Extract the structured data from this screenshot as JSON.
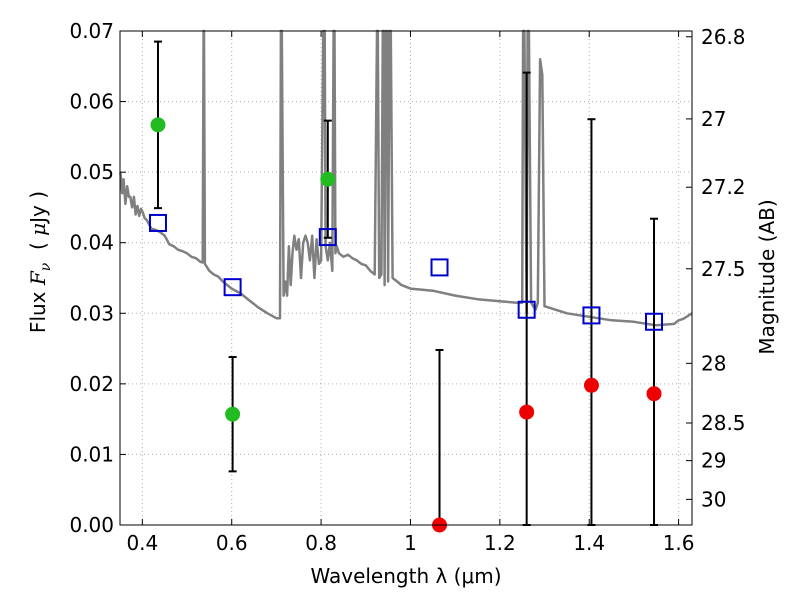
{
  "chart_data": {
    "type": "scatter",
    "xlabel": "Wavelength  λ (μm)",
    "ylabel": "Flux  F_ν  ( μJy )",
    "ylabel_parts": {
      "prefix": "Flux ",
      "symbol": "F",
      "subscript": "ν",
      "open": "  ( ",
      "unit_mu": "μ",
      "unit": "Jy )"
    },
    "y2label": "Magnitude (AB)",
    "xlim": [
      0.35,
      1.63
    ],
    "ylim": [
      0.0,
      0.07
    ],
    "grid": true,
    "xticks": [
      {
        "value": 0.4,
        "label": "0.4"
      },
      {
        "value": 0.6,
        "label": "0.6"
      },
      {
        "value": 0.8,
        "label": "0.8"
      },
      {
        "value": 1.0,
        "label": "1"
      },
      {
        "value": 1.2,
        "label": "1.2"
      },
      {
        "value": 1.4,
        "label": "1.4"
      },
      {
        "value": 1.6,
        "label": "1.6"
      }
    ],
    "yticks": [
      {
        "value": 0.0,
        "label": "0.00"
      },
      {
        "value": 0.01,
        "label": "0.01"
      },
      {
        "value": 0.02,
        "label": "0.02"
      },
      {
        "value": 0.03,
        "label": "0.03"
      },
      {
        "value": 0.04,
        "label": "0.04"
      },
      {
        "value": 0.05,
        "label": "0.05"
      },
      {
        "value": 0.06,
        "label": "0.06"
      },
      {
        "value": 0.07,
        "label": "0.07"
      }
    ],
    "y2ticks": [
      {
        "mag": 26.8,
        "label": "26.8"
      },
      {
        "mag": 27.0,
        "label": "27"
      },
      {
        "mag": 27.2,
        "label": "27.2"
      },
      {
        "mag": 27.5,
        "label": "27.5"
      },
      {
        "mag": 28.0,
        "label": "28"
      },
      {
        "mag": 28.5,
        "label": "28.5"
      },
      {
        "mag": 29.0,
        "label": "29"
      },
      {
        "mag": 30.0,
        "label": "30"
      }
    ],
    "colors": {
      "model": "#808080",
      "model_fluxes": "#0000cc",
      "detections": "#22bb22",
      "non_detections": "#ee0000",
      "errorbars": "#000000",
      "grid": "#b0b0b0"
    },
    "series": [
      {
        "kind": "model_sed_line",
        "x": [
          0.351,
          0.355,
          0.358,
          0.362,
          0.366,
          0.37,
          0.373,
          0.377,
          0.381,
          0.385,
          0.389,
          0.393,
          0.397,
          0.401,
          0.405,
          0.41,
          0.42,
          0.43,
          0.44,
          0.45,
          0.46,
          0.47,
          0.48,
          0.49,
          0.5,
          0.51,
          0.52,
          0.53,
          0.535,
          0.537,
          0.538,
          0.54,
          0.55,
          0.56,
          0.57,
          0.58,
          0.6,
          0.62,
          0.64,
          0.66,
          0.68,
          0.7,
          0.708,
          0.71,
          0.712,
          0.716,
          0.72,
          0.724,
          0.728,
          0.732,
          0.736,
          0.74,
          0.745,
          0.75,
          0.755,
          0.76,
          0.765,
          0.77,
          0.775,
          0.78,
          0.785,
          0.79,
          0.795,
          0.8,
          0.805,
          0.808,
          0.81,
          0.815,
          0.82,
          0.825,
          0.828,
          0.83,
          0.832,
          0.835,
          0.84,
          0.85,
          0.86,
          0.87,
          0.88,
          0.89,
          0.9,
          0.91,
          0.92,
          0.925,
          0.927,
          0.93,
          0.935,
          0.938,
          0.94,
          0.942,
          0.945,
          0.948,
          0.95,
          0.953,
          0.956,
          0.96,
          0.97,
          0.98,
          1.0,
          1.05,
          1.1,
          1.15,
          1.2,
          1.24,
          1.25,
          1.252,
          1.255,
          1.26,
          1.262,
          1.265,
          1.27,
          1.28,
          1.285,
          1.29,
          1.295,
          1.3,
          1.35,
          1.4,
          1.45,
          1.5,
          1.55,
          1.59,
          1.6,
          1.61,
          1.63
        ],
        "y": [
          0.05,
          0.047,
          0.049,
          0.0455,
          0.048,
          0.0465,
          0.0465,
          0.045,
          0.0465,
          0.044,
          0.0452,
          0.0438,
          0.0448,
          0.0443,
          0.0435,
          0.0432,
          0.042,
          0.0418,
          0.0415,
          0.041,
          0.0398,
          0.0395,
          0.039,
          0.0388,
          0.0385,
          0.038,
          0.0378,
          0.0373,
          0.0372,
          0.07,
          0.07,
          0.037,
          0.036,
          0.0355,
          0.0352,
          0.0345,
          0.0335,
          0.0328,
          0.0318,
          0.0308,
          0.03,
          0.0293,
          0.0293,
          0.07,
          0.07,
          0.0325,
          0.0345,
          0.0325,
          0.0395,
          0.034,
          0.0385,
          0.041,
          0.039,
          0.0405,
          0.035,
          0.04,
          0.041,
          0.04,
          0.0375,
          0.041,
          0.035,
          0.0405,
          0.037,
          0.0375,
          0.07,
          0.07,
          0.0395,
          0.0375,
          0.04,
          0.036,
          0.07,
          0.07,
          0.0385,
          0.0395,
          0.0385,
          0.038,
          0.0383,
          0.0378,
          0.0375,
          0.037,
          0.0368,
          0.036,
          0.0355,
          0.07,
          0.07,
          0.035,
          0.0355,
          0.07,
          0.07,
          0.034,
          0.07,
          0.07,
          0.0345,
          0.07,
          0.07,
          0.035,
          0.0345,
          0.034,
          0.0335,
          0.0332,
          0.0325,
          0.032,
          0.0317,
          0.0315,
          0.0315,
          0.07,
          0.07,
          0.03,
          0.07,
          0.07,
          0.0315,
          0.0305,
          0.0315,
          0.066,
          0.0638,
          0.031,
          0.03,
          0.0295,
          0.029,
          0.0288,
          0.0283,
          0.0285,
          0.029,
          0.0292,
          0.03
        ]
      },
      {
        "kind": "model_fluxes",
        "marker": "open-square",
        "x": [
          0.435,
          0.602,
          0.815,
          1.065,
          1.26,
          1.405,
          1.545
        ],
        "y": [
          0.0428,
          0.0337,
          0.0408,
          0.0365,
          0.0305,
          0.0297,
          0.0288
        ]
      },
      {
        "kind": "detections",
        "marker": "filled-circle",
        "x": [
          0.435,
          0.602,
          0.815
        ],
        "y": [
          0.0567,
          0.0157,
          0.049
        ],
        "yerr": [
          0.0118,
          0.0081,
          0.0083
        ]
      },
      {
        "kind": "non_detections",
        "marker": "filled-circle",
        "x": [
          1.065,
          1.26,
          1.405,
          1.545
        ],
        "y": [
          0.0,
          0.016,
          0.0198,
          0.0186
        ],
        "yerr": [
          0.0248,
          0.0481,
          0.0377,
          0.0248
        ]
      }
    ]
  }
}
